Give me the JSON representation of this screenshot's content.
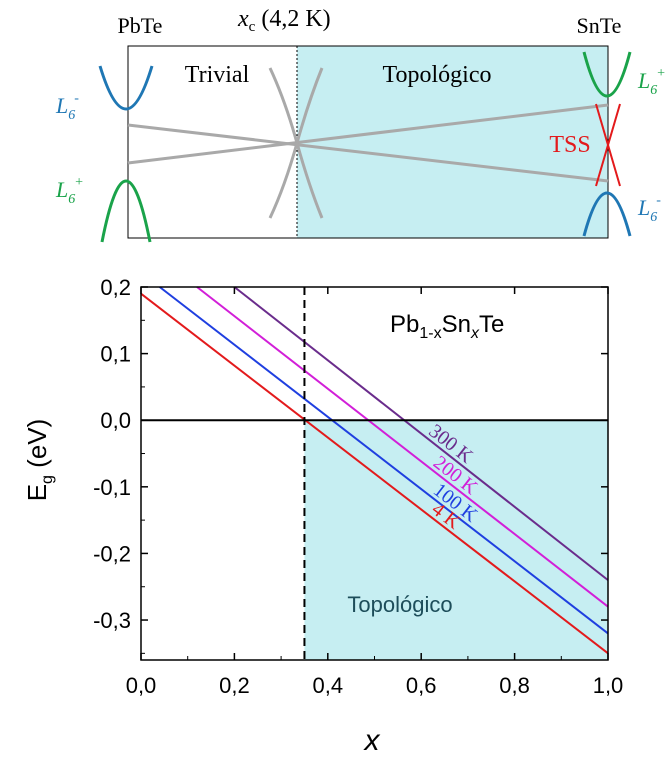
{
  "colors": {
    "band_blue": "#1f77b4",
    "band_green": "#1aa34a",
    "grey": "#a9a9a9",
    "tss_red": "#e31a1c",
    "topological_fill": "#c6eef2",
    "frame": "#000000"
  },
  "schematic": {
    "left_label": "PbTe",
    "xc_symbol": "x",
    "xc_subscript": "c",
    "xc_value": " (4,2 K)",
    "right_label": "SnTe",
    "trivial_label": "Trivial",
    "topological_label": "Topológico",
    "tss_label": "TSS",
    "l6_minus_left": {
      "base": "L",
      "sub": "6",
      "sup": "-"
    },
    "l6_plus_left": {
      "base": "L",
      "sub": "6",
      "sup": "+"
    },
    "l6_plus_right": {
      "base": "L",
      "sub": "6",
      "sup": "+"
    },
    "l6_minus_right": {
      "base": "L",
      "sub": "6",
      "sup": "-"
    }
  },
  "chart_data": {
    "type": "line",
    "xlabel": "x",
    "ylabel_base": "E",
    "ylabel_sub": "g",
    "ylabel_rest": " (eV)",
    "xlim": [
      0.0,
      1.0
    ],
    "ylim": [
      -0.36,
      0.2
    ],
    "xticks": [
      0.0,
      0.2,
      0.4,
      0.6,
      0.8,
      1.0
    ],
    "xtick_labels": [
      "0,0",
      "0,2",
      "0,4",
      "0,6",
      "0,8",
      "1,0"
    ],
    "yticks": [
      0.2,
      0.1,
      0.0,
      -0.1,
      -0.2,
      -0.3
    ],
    "ytick_labels": [
      "0,2",
      "0,1",
      "0,0",
      "-0,1",
      "-0,2",
      "-0,3"
    ],
    "annotation_formula": {
      "a": "Pb",
      "b": "1-x",
      "c": "Sn",
      "d": "x",
      "e": "Te"
    },
    "region_label": "Topológico",
    "critical_x": 0.35,
    "series": [
      {
        "name": "4 K",
        "color": "#e31a1c",
        "x": [
          0.0,
          1.0
        ],
        "y": [
          0.19,
          -0.35
        ]
      },
      {
        "name": "100 K",
        "color": "#1f3fe0",
        "x": [
          0.04,
          1.0
        ],
        "y": [
          0.2,
          -0.32
        ]
      },
      {
        "name": "200 K",
        "color": "#d21fd8",
        "x": [
          0.12,
          1.0
        ],
        "y": [
          0.2,
          -0.28
        ]
      },
      {
        "name": "300 K",
        "color": "#6a2c8c",
        "x": [
          0.2,
          1.0
        ],
        "y": [
          0.2,
          -0.24
        ]
      }
    ]
  }
}
